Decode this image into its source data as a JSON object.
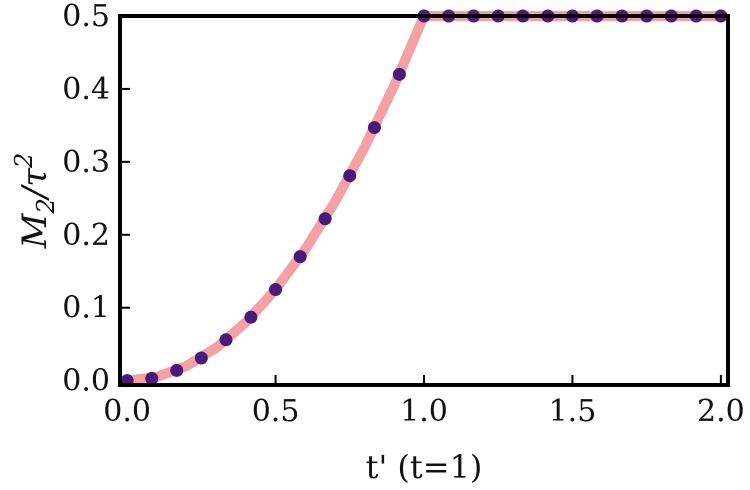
{
  "chart_data": {
    "type": "line",
    "xlabel": "t' (t=1)",
    "ylabel": "M2/τ2",
    "ylabel_parts": {
      "main": "M",
      "sub": "2",
      "slash": "/",
      "tau": "τ",
      "sup": "2"
    },
    "xlim": [
      0.0,
      2.0
    ],
    "ylim": [
      0.0,
      0.5
    ],
    "xticks": [
      0.0,
      0.5,
      1.0,
      1.5,
      2.0
    ],
    "xtick_labels": [
      "0.0",
      "0.5",
      "1.0",
      "1.5",
      "2.0"
    ],
    "yticks": [
      0.0,
      0.1,
      0.2,
      0.3,
      0.4,
      0.5
    ],
    "ytick_labels": [
      "0.0",
      "0.1",
      "0.2",
      "0.3",
      "0.4",
      "0.5"
    ],
    "grid": false,
    "series": [
      {
        "style": "line",
        "color": "#f4a0a4",
        "x": [
          0.0,
          0.1,
          0.2,
          0.3,
          0.4,
          0.5,
          0.6,
          0.7,
          0.8,
          0.9,
          1.0,
          1.2,
          1.4,
          1.6,
          1.8,
          2.0
        ],
        "y": [
          0.0,
          0.005,
          0.02,
          0.045,
          0.08,
          0.125,
          0.18,
          0.245,
          0.32,
          0.405,
          0.5,
          0.5,
          0.5,
          0.5,
          0.5,
          0.5
        ]
      },
      {
        "style": "markers",
        "color": "#4b1a78",
        "x": [
          0.0,
          0.083,
          0.167,
          0.25,
          0.333,
          0.417,
          0.5,
          0.583,
          0.667,
          0.75,
          0.833,
          0.917,
          1.0,
          1.083,
          1.167,
          1.25,
          1.333,
          1.417,
          1.5,
          1.583,
          1.667,
          1.75,
          1.833,
          1.917,
          2.0
        ],
        "y": [
          0.0,
          0.003,
          0.014,
          0.031,
          0.056,
          0.087,
          0.125,
          0.17,
          0.222,
          0.281,
          0.347,
          0.42,
          0.5,
          0.5,
          0.5,
          0.5,
          0.5,
          0.5,
          0.5,
          0.5,
          0.5,
          0.5,
          0.5,
          0.5,
          0.5
        ]
      }
    ]
  }
}
